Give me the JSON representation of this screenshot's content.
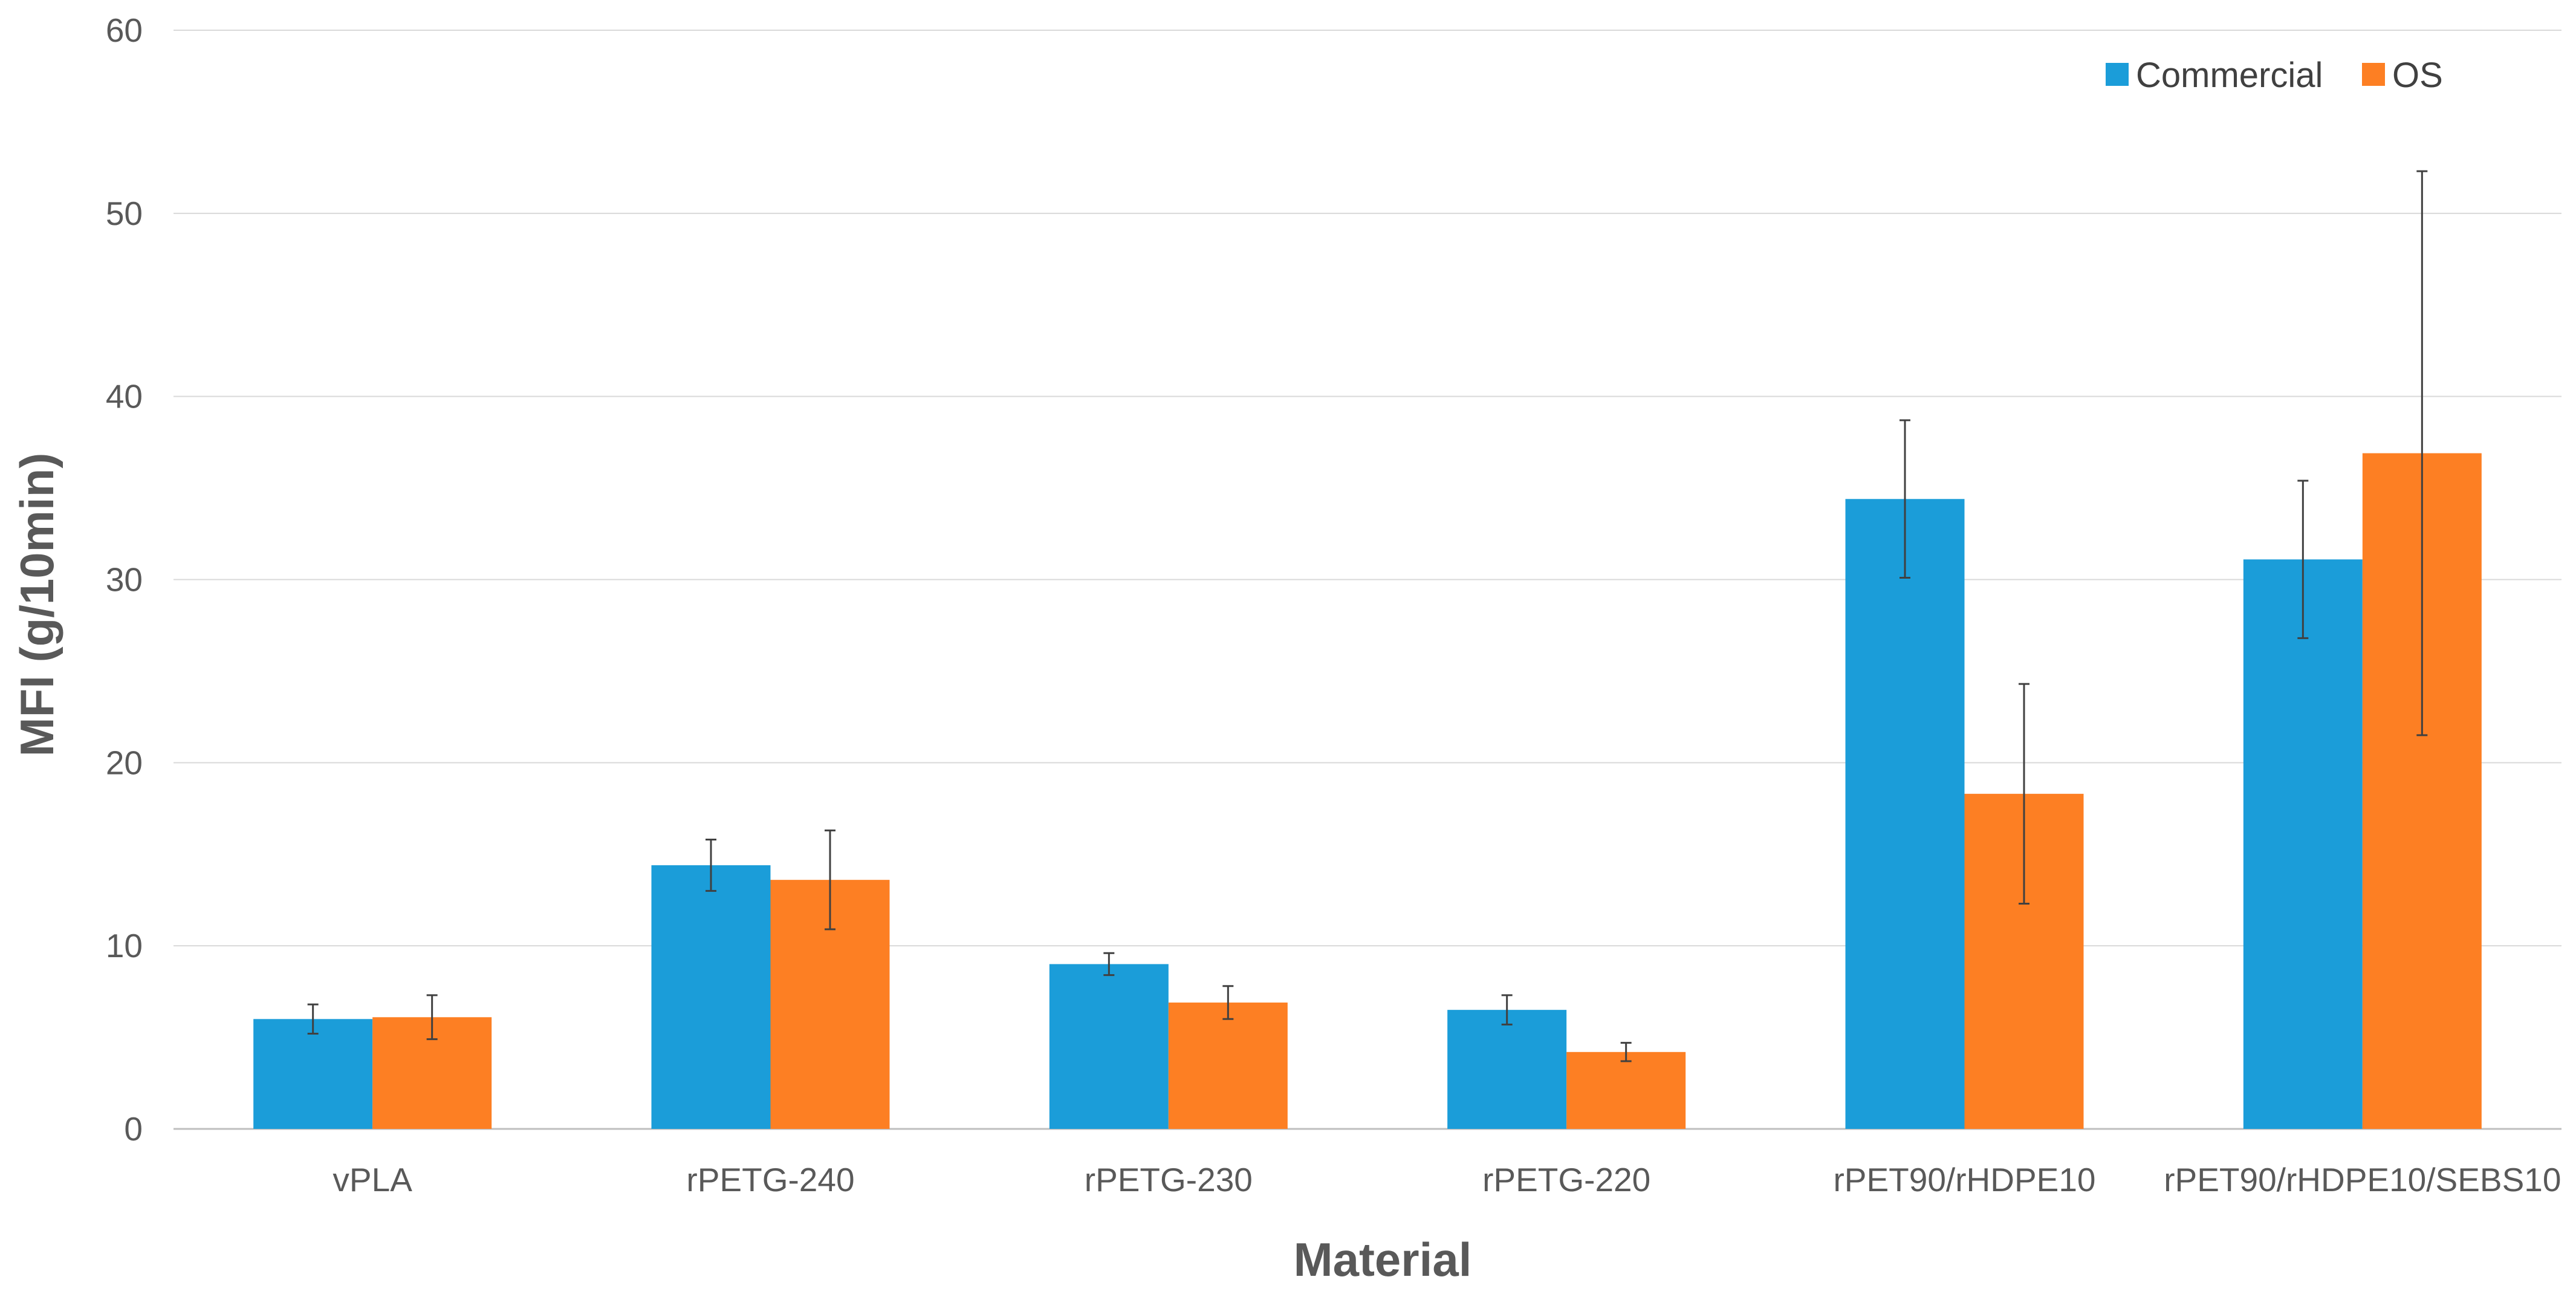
{
  "chart_data": {
    "type": "bar",
    "title": "",
    "xlabel": "Material",
    "ylabel": "MFI (g/10min)",
    "ylim": [
      0,
      60
    ],
    "yticks": [
      "0",
      "10",
      "20",
      "30",
      "40",
      "50",
      "60"
    ],
    "grid": "horizontal",
    "legend_position": "top-right",
    "categories": [
      "vPLA",
      "rPETG-240",
      "rPETG-230",
      "rPETG-220",
      "rPET90/rHDPE10",
      "rPET90/rHDPE10/SEBS10"
    ],
    "series": [
      {
        "name": "Commercial",
        "color": "#1b9dd9",
        "values": [
          6.0,
          14.4,
          9.0,
          6.5,
          34.4,
          31.1
        ],
        "errors": [
          0.8,
          1.4,
          0.6,
          0.8,
          4.3,
          4.3
        ]
      },
      {
        "name": "OS",
        "color": "#fd7f23",
        "values": [
          6.1,
          13.6,
          6.9,
          4.2,
          18.3,
          36.9
        ],
        "errors": [
          1.2,
          2.7,
          0.9,
          0.5,
          6.0,
          15.4
        ]
      }
    ]
  },
  "colors": {
    "grid": "#d9d9d9",
    "axis": "#bfbfbf",
    "error_bar": "#404040"
  }
}
